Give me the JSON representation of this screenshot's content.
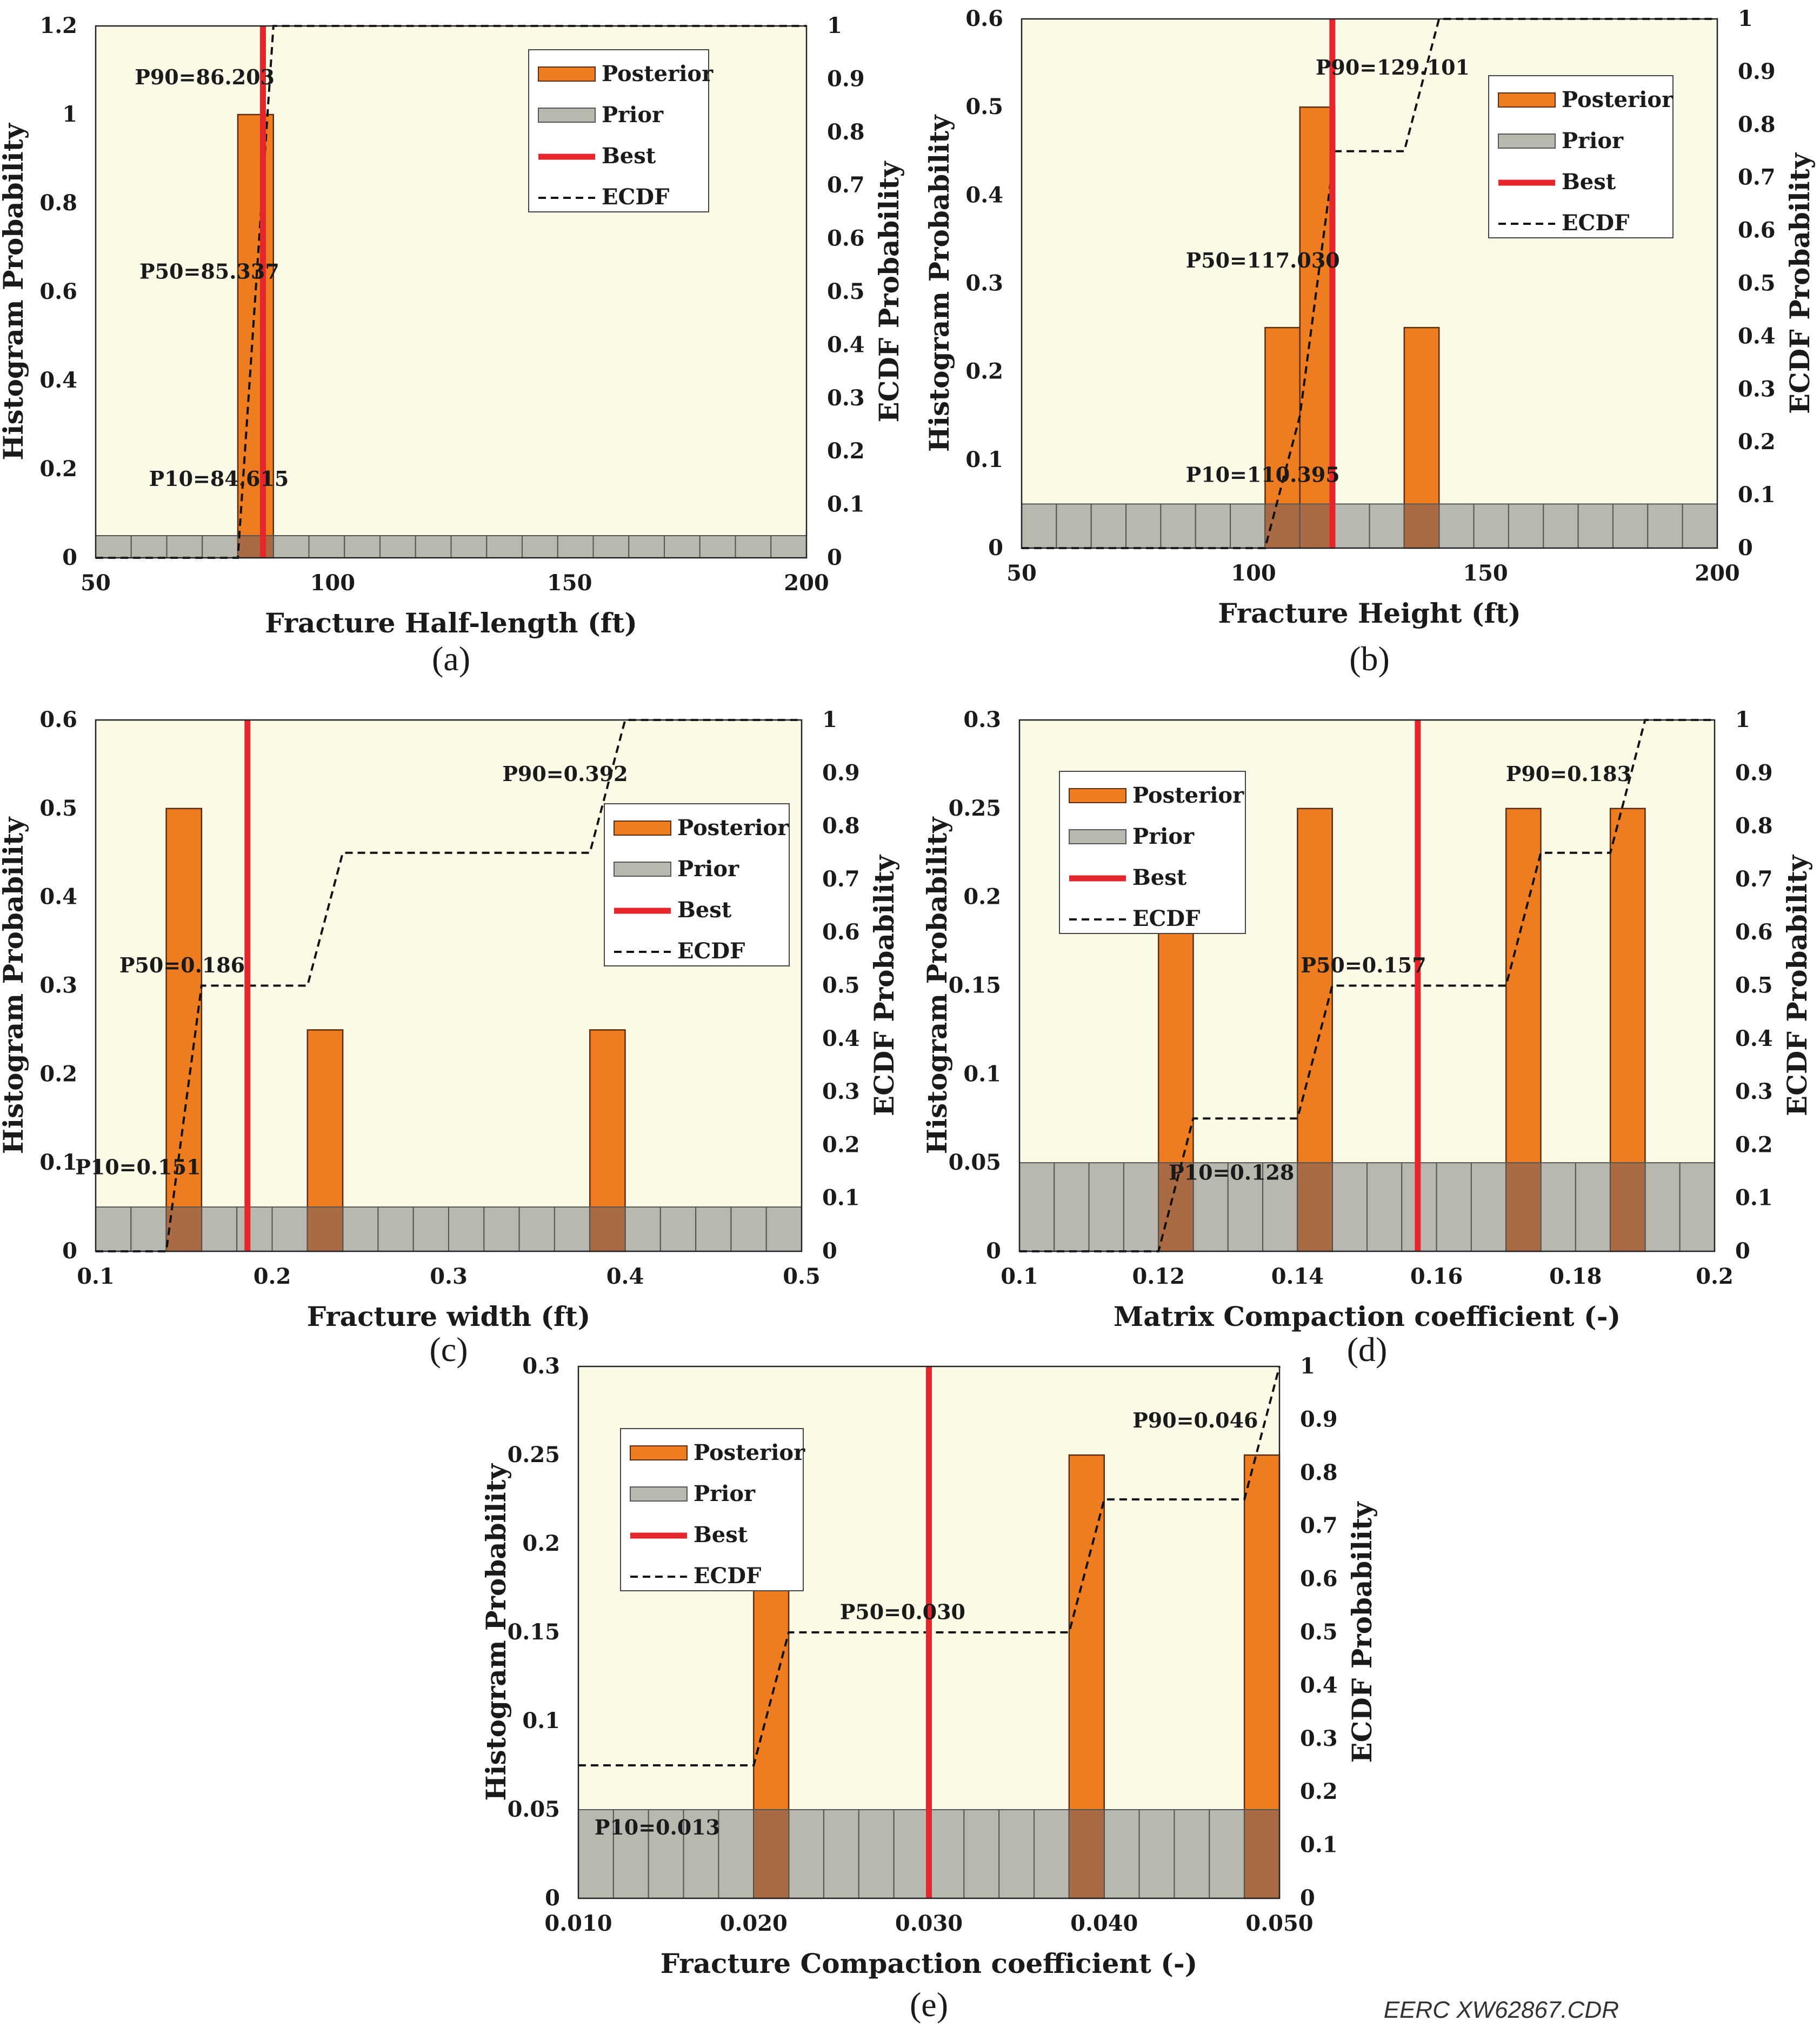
{
  "credit": "EERC XW62867.CDR",
  "colors": {
    "plot_bg": "#fafae6",
    "posterior": "#ee7d22",
    "posterior_stroke": "#5a2e0c",
    "prior": "#b8b8ae",
    "prior_stroke": "#555555",
    "overlap": "#a96a44",
    "best": "#e5262c",
    "ecdf": "#111111"
  },
  "legend_labels": {
    "posterior": "Posterior",
    "prior": "Prior",
    "best": "Best",
    "ecdf": "ECDF"
  },
  "chart_data": [
    {
      "type": "bar",
      "panel": "(a)",
      "xlabel": "Fracture Half-length (ft)",
      "ylabel": "Histogram Probability",
      "y2label": "ECDF Probability",
      "xlim": [
        50,
        200
      ],
      "ylim": [
        0,
        1.2
      ],
      "y2lim": [
        0,
        1
      ],
      "xticks": [
        50,
        100,
        150,
        200
      ],
      "xtick_labels": [
        "50",
        "100",
        "150",
        "200"
      ],
      "yticks": [
        0,
        0.2,
        0.4,
        0.6,
        0.8,
        1,
        1.2
      ],
      "ytick_labels": [
        "0",
        "0.2",
        "0.4",
        "0.6",
        "0.8",
        "1",
        "1.2"
      ],
      "y2ticks": [
        0,
        0.1,
        0.2,
        0.3,
        0.4,
        0.5,
        0.6,
        0.7,
        0.8,
        0.9,
        1
      ],
      "y2tick_labels": [
        "0",
        "0.1",
        "0.2",
        "0.3",
        "0.4",
        "0.5",
        "0.6",
        "0.7",
        "0.8",
        "0.9",
        "1"
      ],
      "prior": {
        "start": 50,
        "bin_width": 7.5,
        "count": 20,
        "height": 0.05
      },
      "posterior": [
        {
          "x0": 80,
          "x1": 87.5,
          "value": 1
        }
      ],
      "best": 85.3,
      "ecdf": [
        [
          50,
          0
        ],
        [
          80,
          0
        ],
        [
          87.5,
          1
        ],
        [
          200,
          1
        ]
      ],
      "legend_position": "top-right",
      "annotations": [
        {
          "text": "P90=86.203",
          "x": 73,
          "y2": 0.89,
          "anchor": "middle"
        },
        {
          "text": "P50=85.337",
          "x": 74,
          "y2": 0.525,
          "anchor": "middle"
        },
        {
          "text": "P10=84.615",
          "x": 76,
          "y2": 0.135,
          "anchor": "middle"
        }
      ]
    },
    {
      "type": "bar",
      "panel": "(b)",
      "xlabel": "Fracture Height (ft)",
      "ylabel": "Histogram Probability",
      "y2label": "ECDF Probability",
      "xlim": [
        50,
        200
      ],
      "ylim": [
        0,
        0.6
      ],
      "y2lim": [
        0,
        1
      ],
      "xticks": [
        50,
        100,
        150,
        200
      ],
      "xtick_labels": [
        "50",
        "100",
        "150",
        "200"
      ],
      "yticks": [
        0,
        0.1,
        0.2,
        0.3,
        0.4,
        0.5,
        0.6
      ],
      "ytick_labels": [
        "0",
        "0.1",
        "0.2",
        "0.3",
        "0.4",
        "0.5",
        "0.6"
      ],
      "y2ticks": [
        0,
        0.1,
        0.2,
        0.3,
        0.4,
        0.5,
        0.6,
        0.7,
        0.8,
        0.9,
        1
      ],
      "y2tick_labels": [
        "0",
        "0.1",
        "0.2",
        "0.3",
        "0.4",
        "0.5",
        "0.6",
        "0.7",
        "0.8",
        "0.9",
        "1"
      ],
      "prior": {
        "start": 50,
        "bin_width": 7.5,
        "count": 20,
        "height": 0.05
      },
      "posterior": [
        {
          "x0": 102.5,
          "x1": 110,
          "value": 0.25
        },
        {
          "x0": 110,
          "x1": 117.5,
          "value": 0.5
        },
        {
          "x0": 132.5,
          "x1": 140,
          "value": 0.25
        }
      ],
      "best": 117,
      "ecdf": [
        [
          50,
          0
        ],
        [
          102.5,
          0
        ],
        [
          110,
          0.25
        ],
        [
          117.5,
          0.75
        ],
        [
          132.5,
          0.75
        ],
        [
          140,
          1
        ],
        [
          200,
          1
        ]
      ],
      "legend_position": "top-right",
      "annotations": [
        {
          "text": "P90=129.101",
          "x": 130,
          "y2": 0.895,
          "anchor": "middle"
        },
        {
          "text": "P50=117.030",
          "x": 102,
          "y2": 0.53,
          "anchor": "middle"
        },
        {
          "text": "P10=110.395",
          "x": 102,
          "y2": 0.125,
          "anchor": "middle"
        }
      ]
    },
    {
      "type": "bar",
      "panel": "(c)",
      "xlabel": "Fracture width (ft)",
      "ylabel": "Histogram Probability",
      "y2label": "ECDF Probability",
      "xlim": [
        0.1,
        0.5
      ],
      "ylim": [
        0,
        0.6
      ],
      "y2lim": [
        0,
        1
      ],
      "xticks": [
        0.1,
        0.2,
        0.3,
        0.4,
        0.5
      ],
      "xtick_labels": [
        "0.1",
        "0.2",
        "0.3",
        "0.4",
        "0.5"
      ],
      "yticks": [
        0,
        0.1,
        0.2,
        0.3,
        0.4,
        0.5,
        0.6
      ],
      "ytick_labels": [
        "0",
        "0.1",
        "0.2",
        "0.3",
        "0.4",
        "0.5",
        "0.6"
      ],
      "y2ticks": [
        0,
        0.1,
        0.2,
        0.3,
        0.4,
        0.5,
        0.6,
        0.7,
        0.8,
        0.9,
        1
      ],
      "y2tick_labels": [
        "0",
        "0.1",
        "0.2",
        "0.3",
        "0.4",
        "0.5",
        "0.6",
        "0.7",
        "0.8",
        "0.9",
        "1"
      ],
      "prior": {
        "start": 0.1,
        "bin_width": 0.02,
        "count": 20,
        "height": 0.05
      },
      "posterior": [
        {
          "x0": 0.14,
          "x1": 0.16,
          "value": 0.5
        },
        {
          "x0": 0.22,
          "x1": 0.24,
          "value": 0.25
        },
        {
          "x0": 0.38,
          "x1": 0.4,
          "value": 0.25
        }
      ],
      "best": 0.186,
      "ecdf": [
        [
          0.1,
          0
        ],
        [
          0.14,
          0
        ],
        [
          0.16,
          0.5
        ],
        [
          0.22,
          0.5
        ],
        [
          0.24,
          0.75
        ],
        [
          0.38,
          0.75
        ],
        [
          0.4,
          1
        ],
        [
          0.5,
          1
        ]
      ],
      "legend_position": "center-right",
      "annotations": [
        {
          "text": "P90=0.392",
          "x": 0.366,
          "y2": 0.885,
          "anchor": "middle"
        },
        {
          "text": "P50=0.186",
          "x": 0.149,
          "y2": 0.525,
          "anchor": "middle"
        },
        {
          "text": "P10=0.151",
          "x": 0.124,
          "y2": 0.145,
          "anchor": "middle"
        }
      ]
    },
    {
      "type": "bar",
      "panel": "(d)",
      "xlabel": "Matrix Compaction coefficient (-)",
      "ylabel": "Histogram Probability",
      "y2label": "ECDF Probability",
      "xlim": [
        0.1,
        0.2
      ],
      "ylim": [
        0,
        0.3
      ],
      "y2lim": [
        0,
        1
      ],
      "xticks": [
        0.1,
        0.12,
        0.14,
        0.16,
        0.18,
        0.2
      ],
      "xtick_labels": [
        "0.1",
        "0.12",
        "0.14",
        "0.16",
        "0.18",
        "0.2"
      ],
      "yticks": [
        0,
        0.05,
        0.1,
        0.15,
        0.2,
        0.25,
        0.3
      ],
      "ytick_labels": [
        "0",
        "0.05",
        "0.1",
        "0.15",
        "0.2",
        "0.25",
        "0.3"
      ],
      "y2ticks": [
        0,
        0.1,
        0.2,
        0.3,
        0.4,
        0.5,
        0.6,
        0.7,
        0.8,
        0.9,
        1
      ],
      "y2tick_labels": [
        "0",
        "0.1",
        "0.2",
        "0.3",
        "0.4",
        "0.5",
        "0.6",
        "0.7",
        "0.8",
        "0.9",
        "1"
      ],
      "prior": {
        "start": 0.1,
        "bin_width": 0.005,
        "count": 20,
        "height": 0.05
      },
      "posterior": [
        {
          "x0": 0.12,
          "x1": 0.125,
          "value": 0.25
        },
        {
          "x0": 0.14,
          "x1": 0.145,
          "value": 0.25
        },
        {
          "x0": 0.17,
          "x1": 0.175,
          "value": 0.25
        },
        {
          "x0": 0.185,
          "x1": 0.19,
          "value": 0.25
        }
      ],
      "best": 0.1573,
      "ecdf": [
        [
          0.1,
          0
        ],
        [
          0.12,
          0
        ],
        [
          0.125,
          0.25
        ],
        [
          0.14,
          0.25
        ],
        [
          0.145,
          0.5
        ],
        [
          0.17,
          0.5
        ],
        [
          0.175,
          0.75
        ],
        [
          0.185,
          0.75
        ],
        [
          0.19,
          1
        ],
        [
          0.2,
          1
        ]
      ],
      "legend_position": "top-left",
      "annotations": [
        {
          "text": "P90=0.183",
          "x": 0.179,
          "y2": 0.885,
          "anchor": "middle"
        },
        {
          "text": "P50=0.157",
          "x": 0.1495,
          "y2": 0.525,
          "anchor": "middle"
        },
        {
          "text": "P10=0.128",
          "x": 0.1305,
          "y2": 0.135,
          "anchor": "middle"
        }
      ]
    },
    {
      "type": "bar",
      "panel": "(e)",
      "xlabel": "Fracture Compaction coefficient (-)",
      "ylabel": "Histogram Probability",
      "y2label": "ECDF Probability",
      "xlim": [
        0.01,
        0.05
      ],
      "ylim": [
        0,
        0.3
      ],
      "y2lim": [
        0,
        1
      ],
      "xticks": [
        0.01,
        0.02,
        0.03,
        0.04,
        0.05
      ],
      "xtick_labels": [
        "0.010",
        "0.020",
        "0.030",
        "0.040",
        "0.050"
      ],
      "yticks": [
        0,
        0.05,
        0.1,
        0.15,
        0.2,
        0.25,
        0.3
      ],
      "ytick_labels": [
        "0",
        "0.05",
        "0.1",
        "0.15",
        "0.2",
        "0.25",
        "0.3"
      ],
      "y2ticks": [
        0,
        0.1,
        0.2,
        0.3,
        0.4,
        0.5,
        0.6,
        0.7,
        0.8,
        0.9,
        1
      ],
      "y2tick_labels": [
        "0",
        "0.1",
        "0.2",
        "0.3",
        "0.4",
        "0.5",
        "0.6",
        "0.7",
        "0.8",
        "0.9",
        "1"
      ],
      "prior": {
        "start": 0.01,
        "bin_width": 0.002,
        "count": 20,
        "height": 0.05
      },
      "posterior": [
        {
          "x0": 0.02,
          "x1": 0.022,
          "value": 0.25
        },
        {
          "x0": 0.038,
          "x1": 0.04,
          "value": 0.25
        },
        {
          "x0": 0.048,
          "x1": 0.05,
          "value": 0.25
        }
      ],
      "best": 0.03,
      "ecdf": [
        [
          0.01,
          0.25
        ],
        [
          0.02,
          0.25
        ],
        [
          0.022,
          0.5
        ],
        [
          0.038,
          0.5
        ],
        [
          0.04,
          0.75
        ],
        [
          0.048,
          0.75
        ],
        [
          0.05,
          1
        ]
      ],
      "legend_position": "top-left",
      "annotations": [
        {
          "text": "P90=0.046",
          "x": 0.0452,
          "y2": 0.885,
          "anchor": "middle"
        },
        {
          "text": "P50=0.030",
          "x": 0.0285,
          "y2": 0.525,
          "anchor": "middle"
        },
        {
          "text": "P10=0.013",
          "x": 0.0145,
          "y2": 0.12,
          "anchor": "middle"
        }
      ]
    }
  ]
}
